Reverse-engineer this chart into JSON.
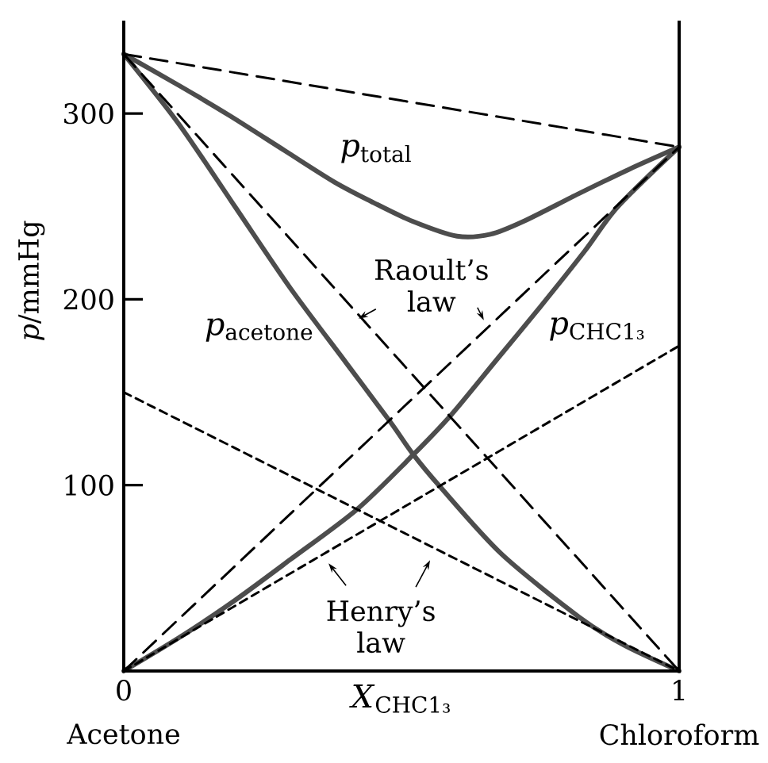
{
  "chart_data": {
    "type": "line",
    "xlabel": "*X*$_{CHC1₃}$",
    "ylabel": "*p*/mmHg",
    "xlim": [
      0,
      1
    ],
    "ylim": [
      0,
      350
    ],
    "xticks": [
      0,
      1
    ],
    "yticks": [
      100,
      200,
      300
    ],
    "series": [
      {
        "name": "*p*$_{acetone}$",
        "color": "#4d4d4d",
        "line_style": "solid",
        "x": [
          0,
          0.1,
          0.2,
          0.3,
          0.4,
          0.48,
          0.52,
          0.57,
          0.68,
          0.82,
          0.9,
          1
        ],
        "values": [
          332,
          294,
          250,
          206,
          166,
          134,
          117,
          99,
          63,
          29,
          14,
          0
        ]
      },
      {
        "name": "*p*$_{CHC1₃}$",
        "color": "#4d4d4d",
        "line_style": "solid",
        "x": [
          0,
          0.1,
          0.2,
          0.3,
          0.42,
          0.52,
          0.59,
          0.67,
          0.75,
          0.83,
          0.89,
          1
        ],
        "values": [
          0,
          18,
          38,
          60,
          87,
          116,
          138,
          167,
          196,
          226,
          250,
          282
        ]
      },
      {
        "name": "*p*$_{total}$",
        "color": "#4d4d4d",
        "line_style": "solid",
        "x": [
          0,
          0.1,
          0.19,
          0.29,
          0.38,
          0.45,
          0.52,
          0.6,
          0.66,
          0.72,
          0.82,
          0.91,
          1
        ],
        "values": [
          332,
          315,
          299,
          280,
          263,
          252,
          242,
          234,
          235,
          242,
          257,
          270,
          282
        ]
      },
      {
        "color": "#000000",
        "line_style": "dashed",
        "x": [
          0,
          1
        ],
        "values": [
          332,
          0
        ]
      },
      {
        "color": "#000000",
        "line_style": "dashed",
        "x": [
          0,
          1
        ],
        "values": [
          0,
          282
        ]
      },
      {
        "color": "#000000",
        "line_style": "dashed",
        "x": [
          0,
          1
        ],
        "values": [
          332,
          282
        ]
      },
      {
        "color": "#000000",
        "line_style": "dotted",
        "x": [
          0,
          1
        ],
        "values": [
          150,
          0
        ]
      },
      {
        "color": "#000000",
        "line_style": "dotted",
        "x": [
          0,
          1
        ],
        "values": [
          0,
          175
        ]
      }
    ],
    "annotations": [
      "Raoult’s law",
      "Henry’s law",
      "Acetone",
      "Chloroform"
    ]
  }
}
